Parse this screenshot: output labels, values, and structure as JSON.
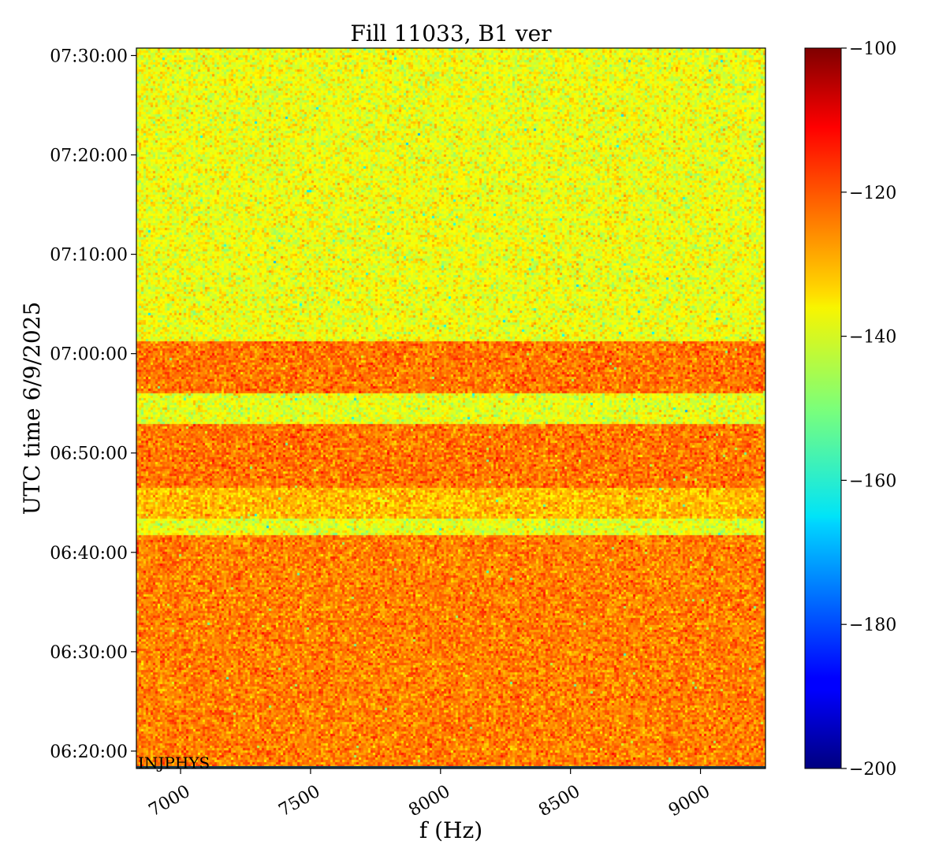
{
  "chart_data": {
    "type": "heatmap",
    "title": "Fill 11033, B1 ver",
    "xlabel": "f (Hz)",
    "ylabel": "UTC time 6/9/2025",
    "xlim": [
      6830,
      9250
    ],
    "x_ticks": [
      {
        "value": 7000,
        "label": "7000"
      },
      {
        "value": 7500,
        "label": "7500"
      },
      {
        "value": 8000,
        "label": "8000"
      },
      {
        "value": 8500,
        "label": "8500"
      },
      {
        "value": 9000,
        "label": "9000"
      }
    ],
    "ylim": [
      "06:18:15",
      "07:30:45"
    ],
    "y_ticks": [
      {
        "value": "06:20:00",
        "label": "06:20:00"
      },
      {
        "value": "06:30:00",
        "label": "06:30:00"
      },
      {
        "value": "06:40:00",
        "label": "06:40:00"
      },
      {
        "value": "06:50:00",
        "label": "06:50:00"
      },
      {
        "value": "07:00:00",
        "label": "07:00:00"
      },
      {
        "value": "07:10:00",
        "label": "07:10:00"
      },
      {
        "value": "07:20:00",
        "label": "07:20:00"
      },
      {
        "value": "07:30:00",
        "label": "07:30:00"
      }
    ],
    "colorbar": {
      "colormap": "jet",
      "range": [
        -200,
        -100
      ],
      "ticks": [
        {
          "value": -100,
          "label": "−100"
        },
        {
          "value": -120,
          "label": "−120"
        },
        {
          "value": -140,
          "label": "−140"
        },
        {
          "value": -160,
          "label": "−160"
        },
        {
          "value": -180,
          "label": "−180"
        },
        {
          "value": -200,
          "label": "−200"
        }
      ]
    },
    "bands": [
      {
        "start": "06:18:15",
        "end": "06:41:50",
        "level": -125
      },
      {
        "start": "06:41:50",
        "end": "06:43:30",
        "level": -140
      },
      {
        "start": "06:43:30",
        "end": "06:46:30",
        "level": -131
      },
      {
        "start": "06:46:30",
        "end": "06:52:50",
        "level": -124
      },
      {
        "start": "06:52:50",
        "end": "06:56:00",
        "level": -140
      },
      {
        "start": "06:56:00",
        "end": "07:01:20",
        "level": -124
      },
      {
        "start": "07:01:20",
        "end": "07:30:45",
        "level": -139
      }
    ],
    "annotation": "INJPHYS",
    "grid": false
  }
}
